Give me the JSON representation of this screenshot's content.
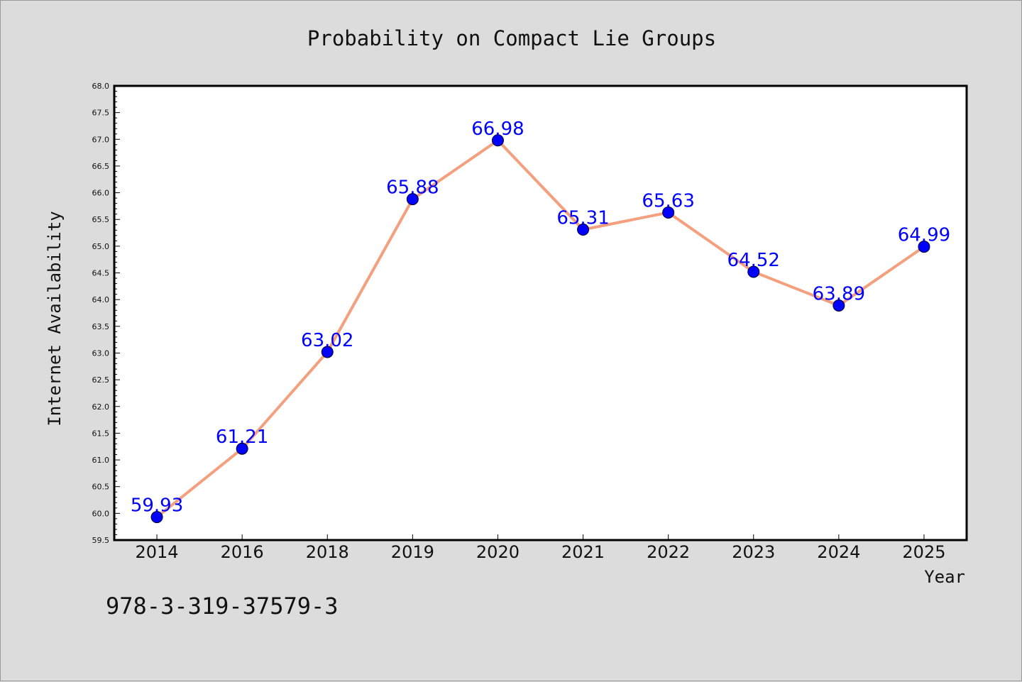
{
  "chart_data": {
    "type": "line",
    "title": "Probability on Compact Lie Groups",
    "xlabel": "Year",
    "ylabel": "Internet Availability",
    "categories": [
      "2014",
      "2016",
      "2018",
      "2019",
      "2020",
      "2021",
      "2022",
      "2023",
      "2024",
      "2025"
    ],
    "series": [
      {
        "values": [
          59.93,
          61.21,
          63.02,
          65.88,
          66.98,
          65.31,
          65.63,
          64.52,
          63.89,
          64.99
        ]
      }
    ],
    "data_labels": [
      "59.93",
      "61.21",
      "63.02",
      "65.88",
      "66.98",
      "65.31",
      "65.63",
      "64.52",
      "63.89",
      "64.99"
    ],
    "ylim": [
      59.5,
      68.0
    ],
    "ytick_labels": [
      "59.5",
      "60.0",
      "60.5",
      "61.0",
      "61.5",
      "62.0",
      "62.5",
      "63.0",
      "63.5",
      "64.0",
      "64.5",
      "65.0",
      "65.5",
      "66.0",
      "66.5",
      "67.0",
      "67.5",
      "68.0"
    ],
    "grid": false,
    "legend": "none",
    "line_color": "#f4a07e",
    "marker_color": "#0000ff",
    "label_color": "#0000ff"
  },
  "footer": {
    "isbn": "978-3-319-37579-3"
  },
  "colors": {
    "background": "#dcdcdc",
    "plot_background": "#ffffff",
    "axis": "#000000"
  }
}
